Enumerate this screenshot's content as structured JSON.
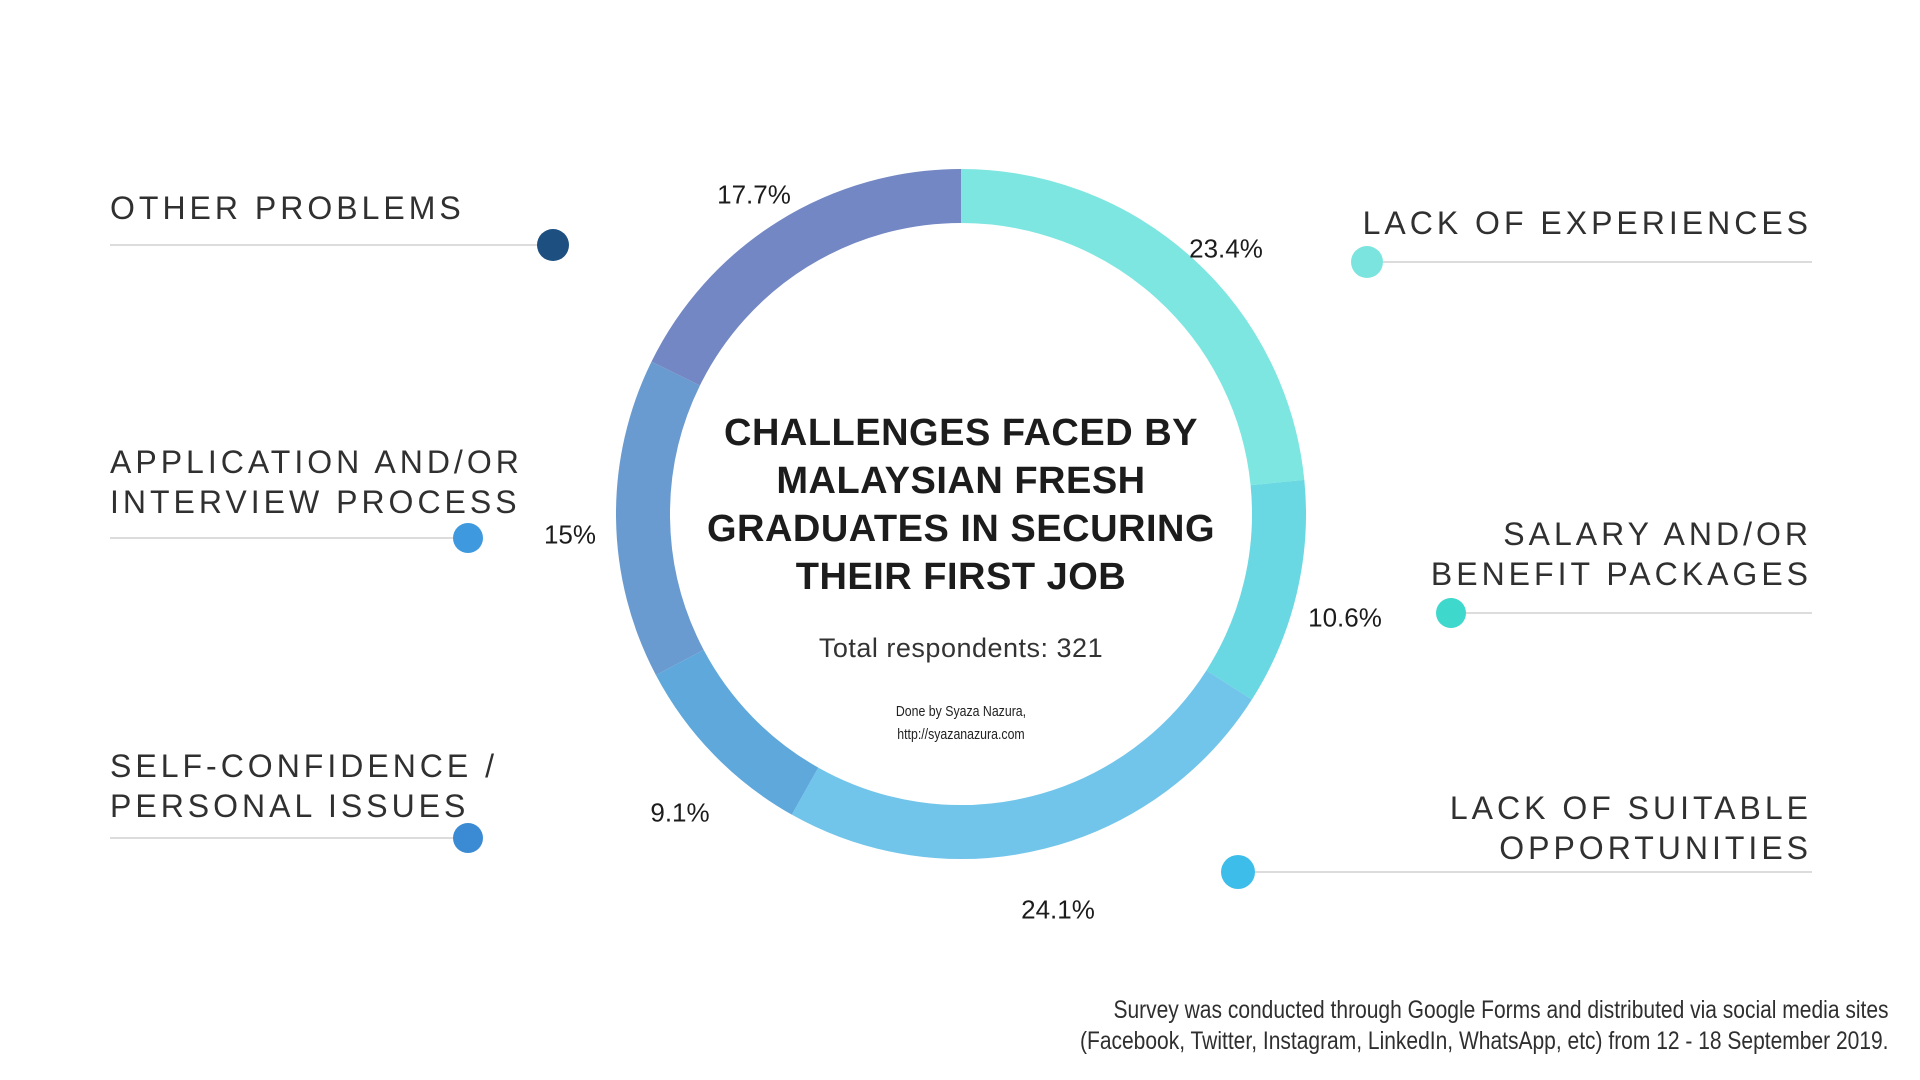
{
  "chart_data": {
    "type": "pie",
    "donut": true,
    "start_angle": "top",
    "direction": "clockwise",
    "legend_position": "callouts-left-right",
    "title": "CHALLENGES FACED BY MALAYSIAN FRESH GRADUATES IN SECURING THEIR FIRST JOB",
    "title_lines": [
      "CHALLENGES FACED BY",
      "MALAYSIAN FRESH",
      "GRADUATES IN SECURING",
      "THEIR FIRST JOB"
    ],
    "subtitle": "Total respondents: 321",
    "total_respondents": 321,
    "credit_lines": [
      "Done by Syaza Nazura,",
      "http://syazanazura.com"
    ],
    "segments": [
      {
        "label": "LACK OF EXPERIENCES",
        "label_lines": [
          "LACK OF EXPERIENCES"
        ],
        "value": 23.4,
        "pct_label": "23.4%",
        "color": "#7EE6E0",
        "dot_color": "#7CE4DE"
      },
      {
        "label": "SALARY AND/OR BENEFIT PACKAGES",
        "label_lines": [
          "SALARY AND/OR",
          "BENEFIT PACKAGES"
        ],
        "value": 10.6,
        "pct_label": "10.6%",
        "color": "#69D8E2",
        "dot_color": "#3ED8CD"
      },
      {
        "label": "LACK OF SUITABLE OPPORTUNITIES",
        "label_lines": [
          "LACK OF SUITABLE",
          "OPPORTUNITIES"
        ],
        "value": 24.1,
        "pct_label": "24.1%",
        "color": "#72C5EA",
        "dot_color": "#3DBEEA"
      },
      {
        "label": "SELF-CONFIDENCE / PERSONAL ISSUES",
        "label_lines": [
          "SELF-CONFIDENCE /",
          "PERSONAL ISSUES"
        ],
        "value": 9.1,
        "pct_label": "9.1%",
        "color": "#5FA8DB",
        "dot_color": "#3A8BD3"
      },
      {
        "label": "APPLICATION AND/OR INTERVIEW PROCESS",
        "label_lines": [
          "APPLICATION AND/OR",
          "INTERVIEW PROCESS"
        ],
        "value": 15,
        "pct_label": "15%",
        "color": "#6A9BD0",
        "dot_color": "#3E99DE"
      },
      {
        "label": "OTHER PROBLEMS",
        "label_lines": [
          "OTHER PROBLEMS"
        ],
        "value": 17.7,
        "pct_label": "17.7%",
        "color": "#7287C3",
        "dot_color": "#1D5080"
      }
    ],
    "footer_lines": [
      "Survey was conducted through Google Forms and distributed via social media sites",
      "(Facebook, Twitter, Instagram, LinkedIn, WhatsApp, etc) from 12 - 18 September 2019."
    ]
  }
}
